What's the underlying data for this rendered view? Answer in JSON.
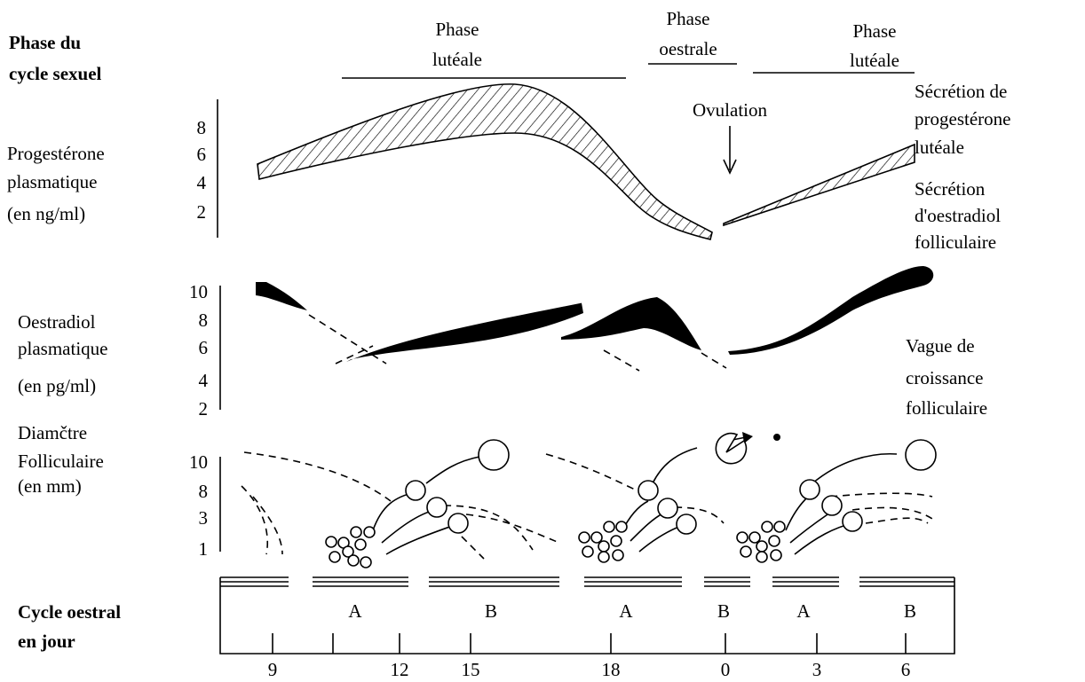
{
  "phase_header": {
    "title": [
      "Phase du",
      "cycle sexuel"
    ],
    "phases": [
      [
        "Phase",
        "lutéale"
      ],
      [
        "Phase",
        "oestrale"
      ],
      [
        "Phase",
        "lutéale"
      ]
    ]
  },
  "progesterone": {
    "label": [
      "Progestérone",
      "plasmatique",
      "(en ng/ml)"
    ],
    "ticks": [
      8,
      6,
      4,
      2
    ],
    "ovulation": "Ovulation",
    "annotation": [
      "Sécrétion de",
      "progestérone",
      "lutéale"
    ]
  },
  "oestradiol": {
    "label": [
      "Oestradiol",
      "plasmatique",
      "(en pg/ml)"
    ],
    "ticks": [
      10,
      8,
      6,
      4,
      2
    ],
    "annotation_top": [
      "Sécrétion",
      "d'oestradiol",
      "folliculaire"
    ],
    "annotation_bottom": [
      "Vague de",
      "croissance",
      "folliculaire"
    ]
  },
  "diameter": {
    "label": [
      "Diamčtre",
      "Folliculaire",
      "(en mm)"
    ],
    "ticks": [
      10,
      8,
      3,
      1
    ]
  },
  "cycle": {
    "label": [
      "Cycle oestral",
      "en jour"
    ],
    "stages": [
      "A",
      "B",
      "A",
      "B",
      "A",
      "B"
    ],
    "days": [
      9,
      12,
      15,
      18,
      0,
      3,
      6
    ]
  }
}
